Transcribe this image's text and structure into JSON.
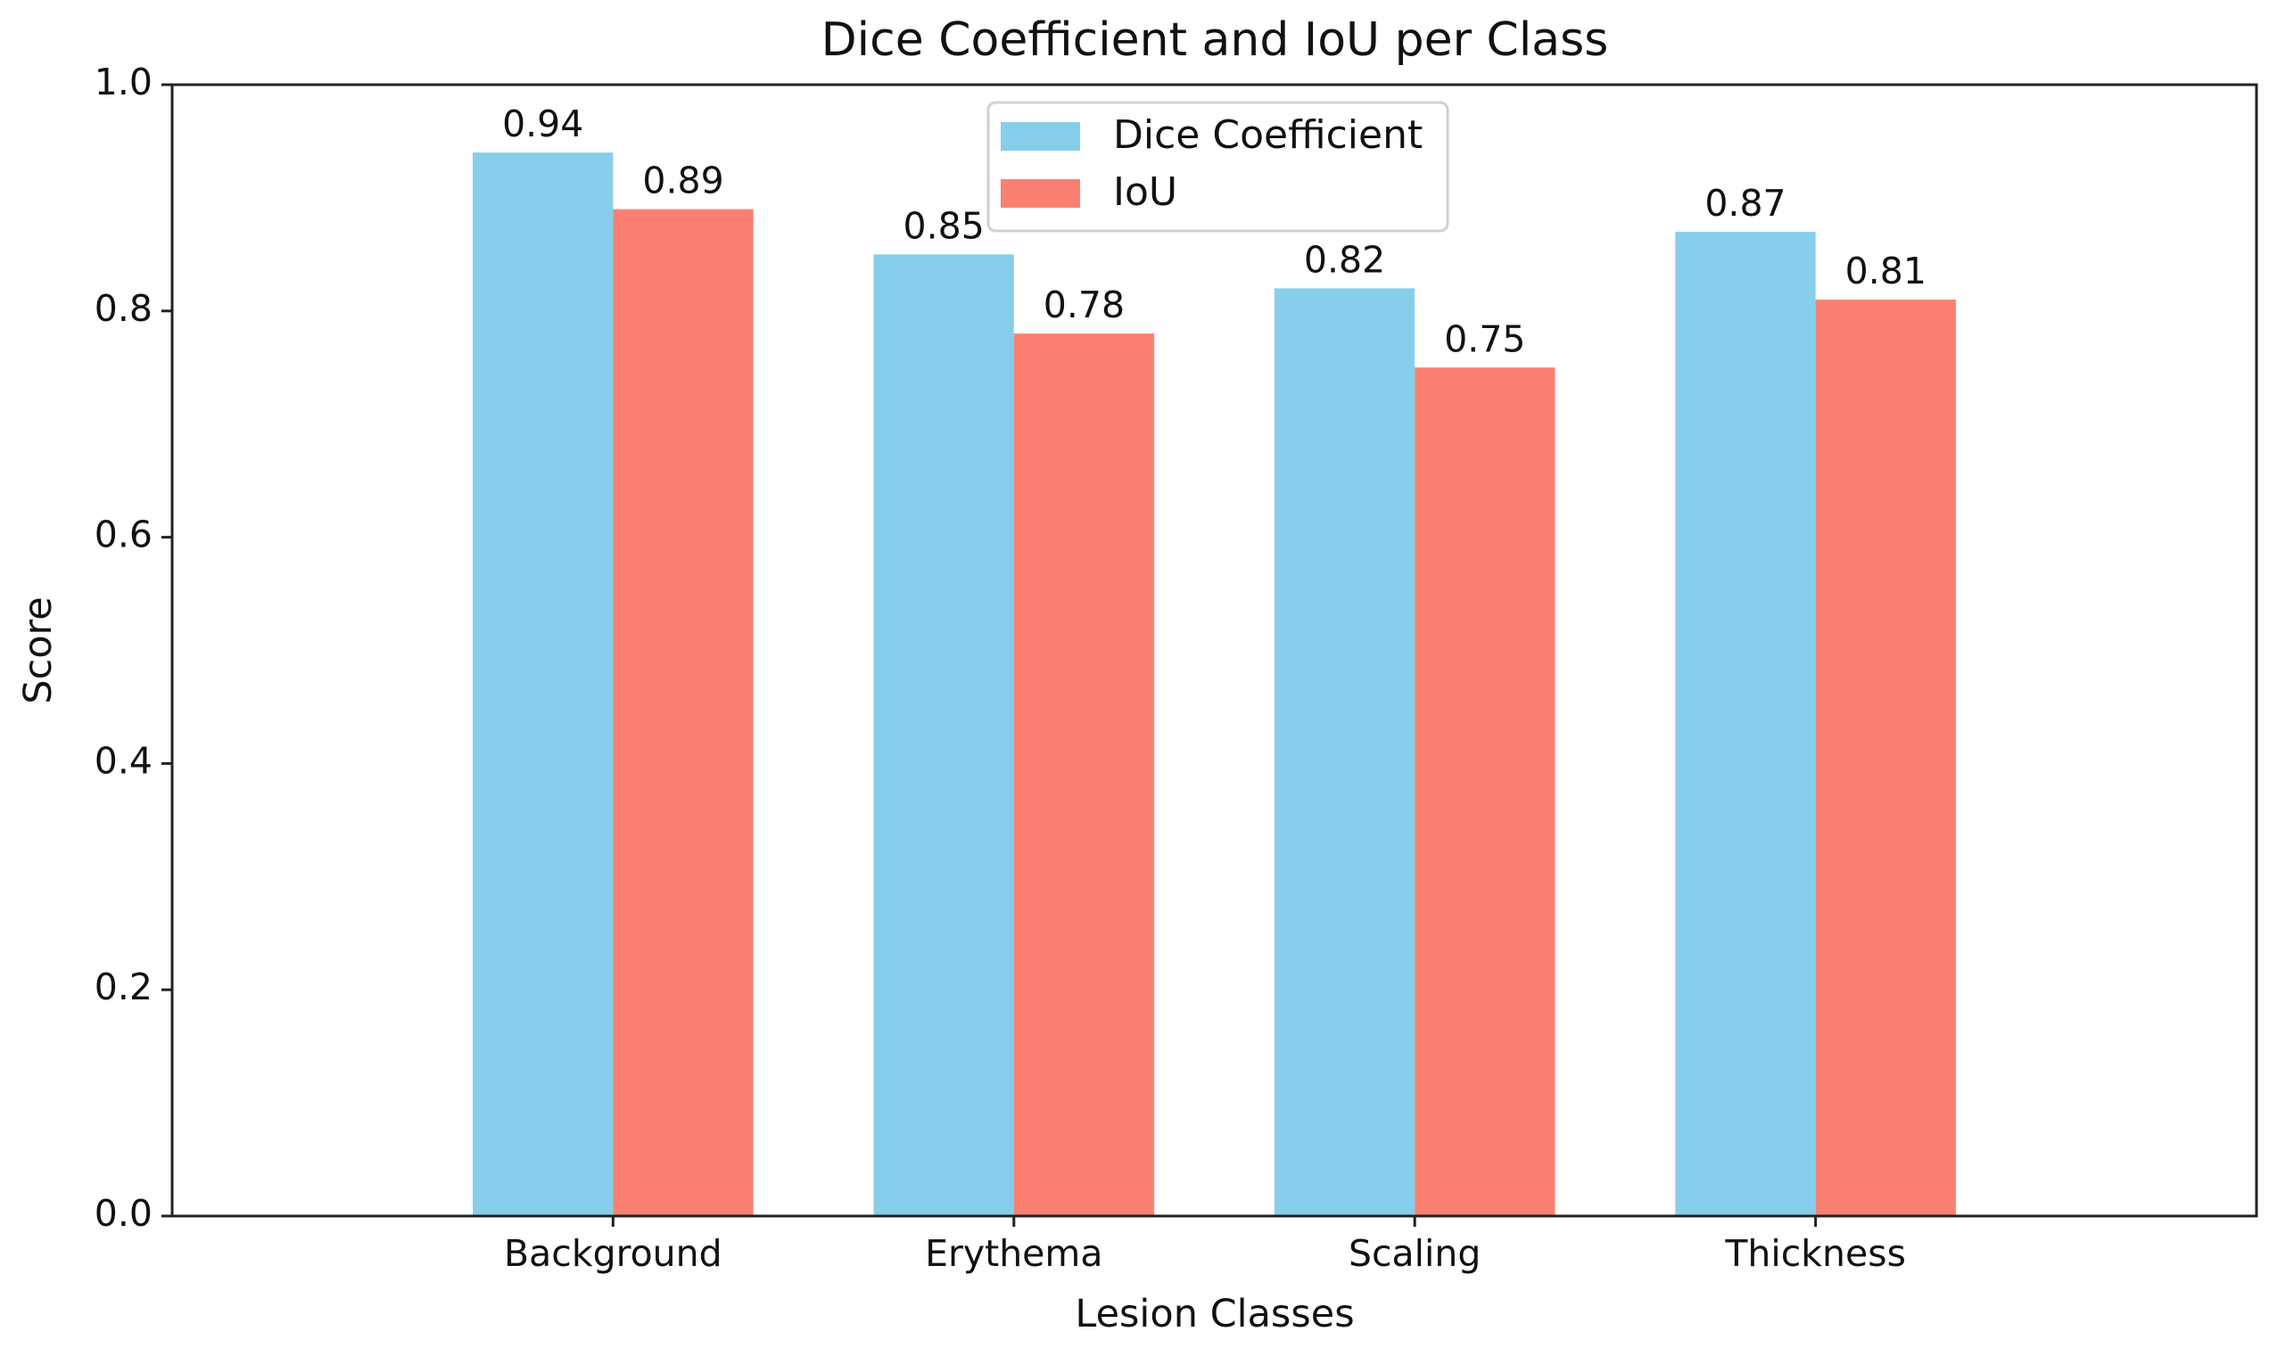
{
  "chart_data": {
    "type": "bar",
    "title": "Dice Coefficient and IoU per Class",
    "xlabel": "Lesion Classes",
    "ylabel": "Score",
    "categories": [
      "Background",
      "Erythema",
      "Scaling",
      "Thickness"
    ],
    "series": [
      {
        "name": "Dice Coefficient",
        "values": [
          0.94,
          0.85,
          0.82,
          0.87
        ],
        "value_labels": [
          "0.94",
          "0.85",
          "0.82",
          "0.87"
        ],
        "color": "#87CEEB"
      },
      {
        "name": "IoU",
        "values": [
          0.89,
          0.78,
          0.75,
          0.81
        ],
        "value_labels": [
          "0.89",
          "0.78",
          "0.75",
          "0.81"
        ],
        "color": "#FA8072"
      }
    ],
    "ylim": [
      0,
      1.0
    ],
    "yticks": [
      0.0,
      0.2,
      0.4,
      0.6,
      0.8,
      1.0
    ],
    "ytick_labels": [
      "0.0",
      "0.2",
      "0.4",
      "0.6",
      "0.8",
      "1.0"
    ],
    "grid": false,
    "legend_position": "top-center"
  }
}
